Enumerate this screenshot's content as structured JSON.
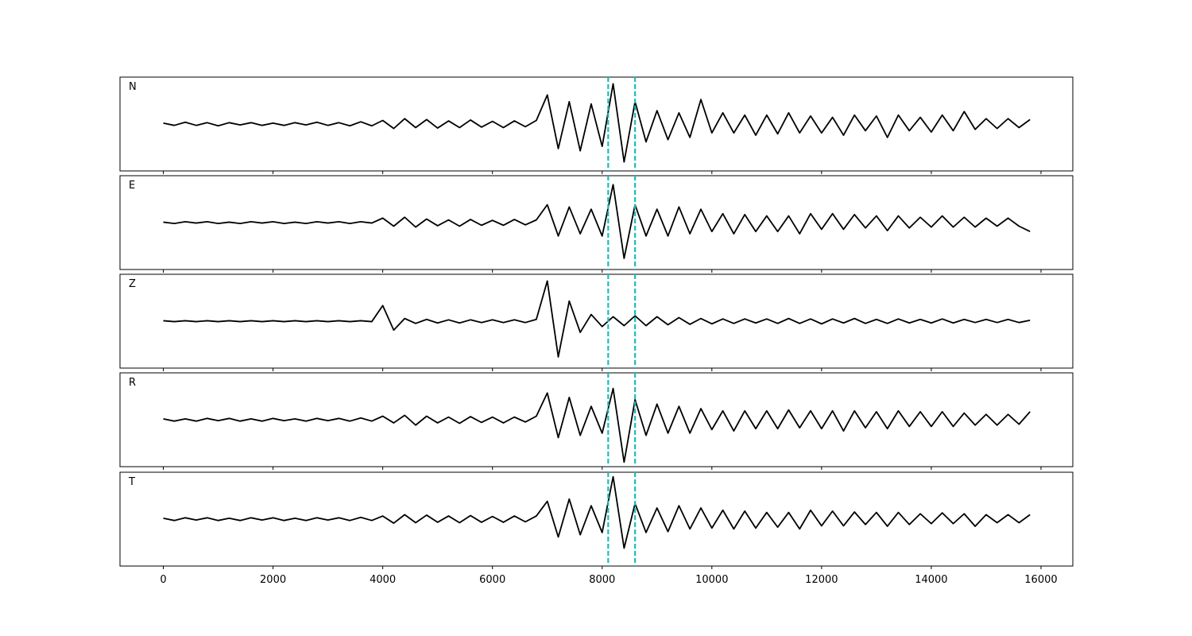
{
  "chart_data": {
    "type": "line",
    "x": [
      0,
      200,
      400,
      600,
      800,
      1000,
      1200,
      1400,
      1600,
      1800,
      2000,
      2200,
      2400,
      2600,
      2800,
      3000,
      3200,
      3400,
      3600,
      3800,
      4000,
      4200,
      4400,
      4600,
      4800,
      5000,
      5200,
      5400,
      5600,
      5800,
      6000,
      6200,
      6400,
      6600,
      6800,
      7000,
      7200,
      7400,
      7600,
      7800,
      8000,
      8200,
      8400,
      8600,
      8800,
      9000,
      9200,
      9400,
      9600,
      9800,
      10000,
      10200,
      10400,
      10600,
      10800,
      11000,
      11200,
      11400,
      11600,
      11800,
      12000,
      12200,
      12400,
      12600,
      12800,
      13000,
      13200,
      13400,
      13600,
      13800,
      14000,
      14200,
      14400,
      14600,
      14800,
      15000,
      15200,
      15400,
      15600,
      15800
    ],
    "xlim": [
      -790,
      16580
    ],
    "xticks": [
      0,
      2000,
      4000,
      6000,
      8000,
      10000,
      12000,
      14000,
      16000
    ],
    "ylim": [
      -1.05,
      1.05
    ],
    "vlines": [
      8110,
      8600
    ],
    "vline_color": "#17bebb",
    "series": [
      {
        "name": "N",
        "color": "#000000",
        "values": [
          0.02,
          -0.03,
          0.04,
          -0.03,
          0.03,
          -0.04,
          0.03,
          -0.02,
          0.03,
          -0.03,
          0.02,
          -0.03,
          0.03,
          -0.02,
          0.04,
          -0.03,
          0.03,
          -0.04,
          0.05,
          -0.04,
          0.08,
          -0.1,
          0.12,
          -0.08,
          0.1,
          -0.09,
          0.07,
          -0.08,
          0.09,
          -0.07,
          0.06,
          -0.08,
          0.07,
          -0.06,
          0.08,
          0.65,
          -0.55,
          0.5,
          -0.6,
          0.45,
          -0.5,
          0.9,
          -0.85,
          0.5,
          -0.4,
          0.3,
          -0.35,
          0.25,
          -0.3,
          0.55,
          -0.2,
          0.25,
          -0.2,
          0.2,
          -0.25,
          0.2,
          -0.22,
          0.25,
          -0.2,
          0.18,
          -0.2,
          0.15,
          -0.25,
          0.2,
          -0.15,
          0.18,
          -0.3,
          0.2,
          -0.15,
          0.15,
          -0.18,
          0.2,
          -0.15,
          0.28,
          -0.12,
          0.12,
          -0.1,
          0.12,
          -0.08,
          0.1
        ]
      },
      {
        "name": "E",
        "color": "#000000",
        "values": [
          0.01,
          -0.02,
          0.02,
          -0.01,
          0.02,
          -0.02,
          0.01,
          -0.02,
          0.02,
          -0.01,
          0.02,
          -0.02,
          0.01,
          -0.02,
          0.02,
          -0.01,
          0.02,
          -0.02,
          0.02,
          -0.01,
          0.1,
          -0.08,
          0.12,
          -0.1,
          0.08,
          -0.07,
          0.06,
          -0.08,
          0.07,
          -0.06,
          0.05,
          -0.06,
          0.07,
          -0.05,
          0.06,
          0.4,
          -0.3,
          0.35,
          -0.25,
          0.3,
          -0.3,
          0.85,
          -0.8,
          0.4,
          -0.3,
          0.3,
          -0.3,
          0.35,
          -0.25,
          0.3,
          -0.2,
          0.2,
          -0.25,
          0.18,
          -0.2,
          0.15,
          -0.2,
          0.15,
          -0.25,
          0.2,
          -0.15,
          0.2,
          -0.15,
          0.18,
          -0.12,
          0.15,
          -0.18,
          0.15,
          -0.12,
          0.12,
          -0.1,
          0.15,
          -0.1,
          0.12,
          -0.1,
          0.1,
          -0.08,
          0.1,
          -0.08,
          -0.2
        ]
      },
      {
        "name": "Z",
        "color": "#000000",
        "values": [
          0.01,
          -0.01,
          0.01,
          -0.01,
          0.01,
          -0.01,
          0.01,
          -0.01,
          0.01,
          -0.01,
          0.01,
          -0.01,
          0.01,
          -0.01,
          0.01,
          -0.01,
          0.01,
          -0.01,
          0.01,
          -0.01,
          0.35,
          -0.2,
          0.06,
          -0.05,
          0.04,
          -0.04,
          0.03,
          -0.04,
          0.03,
          -0.03,
          0.03,
          -0.03,
          0.03,
          -0.03,
          0.04,
          0.9,
          -0.8,
          0.45,
          -0.25,
          0.15,
          -0.12,
          0.1,
          -0.1,
          0.12,
          -0.1,
          0.1,
          -0.08,
          0.08,
          -0.07,
          0.06,
          -0.06,
          0.05,
          -0.05,
          0.05,
          -0.04,
          0.05,
          -0.05,
          0.06,
          -0.05,
          0.05,
          -0.06,
          0.05,
          -0.04,
          0.06,
          -0.05,
          0.04,
          -0.05,
          0.05,
          -0.04,
          0.04,
          -0.04,
          0.05,
          -0.04,
          0.04,
          -0.03,
          0.04,
          -0.03,
          0.04,
          -0.03,
          0.02
        ]
      },
      {
        "name": "R",
        "color": "#000000",
        "values": [
          0.02,
          -0.03,
          0.02,
          -0.03,
          0.03,
          -0.02,
          0.03,
          -0.03,
          0.02,
          -0.03,
          0.03,
          -0.02,
          0.02,
          -0.03,
          0.03,
          -0.02,
          0.03,
          -0.03,
          0.04,
          -0.03,
          0.08,
          -0.07,
          0.1,
          -0.12,
          0.08,
          -0.07,
          0.06,
          -0.08,
          0.07,
          -0.06,
          0.06,
          -0.07,
          0.06,
          -0.05,
          0.08,
          0.6,
          -0.4,
          0.5,
          -0.35,
          0.3,
          -0.3,
          0.7,
          -0.95,
          0.45,
          -0.35,
          0.35,
          -0.3,
          0.3,
          -0.3,
          0.25,
          -0.22,
          0.2,
          -0.25,
          0.2,
          -0.2,
          0.2,
          -0.2,
          0.22,
          -0.18,
          0.2,
          -0.2,
          0.2,
          -0.25,
          0.2,
          -0.18,
          0.18,
          -0.2,
          0.2,
          -0.15,
          0.18,
          -0.15,
          0.18,
          -0.15,
          0.15,
          -0.12,
          0.12,
          -0.12,
          0.12,
          -0.1,
          0.18
        ]
      },
      {
        "name": "T",
        "color": "#000000",
        "values": [
          0.02,
          -0.03,
          0.03,
          -0.02,
          0.03,
          -0.03,
          0.02,
          -0.03,
          0.03,
          -0.02,
          0.03,
          -0.03,
          0.02,
          -0.03,
          0.03,
          -0.02,
          0.03,
          -0.03,
          0.04,
          -0.03,
          0.07,
          -0.09,
          0.1,
          -0.08,
          0.09,
          -0.07,
          0.07,
          -0.08,
          0.08,
          -0.07,
          0.06,
          -0.07,
          0.07,
          -0.06,
          0.07,
          0.4,
          -0.4,
          0.45,
          -0.35,
          0.3,
          -0.3,
          0.95,
          -0.65,
          0.35,
          -0.3,
          0.25,
          -0.28,
          0.3,
          -0.22,
          0.25,
          -0.2,
          0.2,
          -0.22,
          0.18,
          -0.2,
          0.15,
          -0.18,
          0.15,
          -0.22,
          0.2,
          -0.15,
          0.18,
          -0.15,
          0.16,
          -0.12,
          0.15,
          -0.16,
          0.15,
          -0.12,
          0.12,
          -0.1,
          0.14,
          -0.1,
          0.12,
          -0.16,
          0.1,
          -0.08,
          0.1,
          -0.08,
          0.1
        ]
      }
    ]
  }
}
